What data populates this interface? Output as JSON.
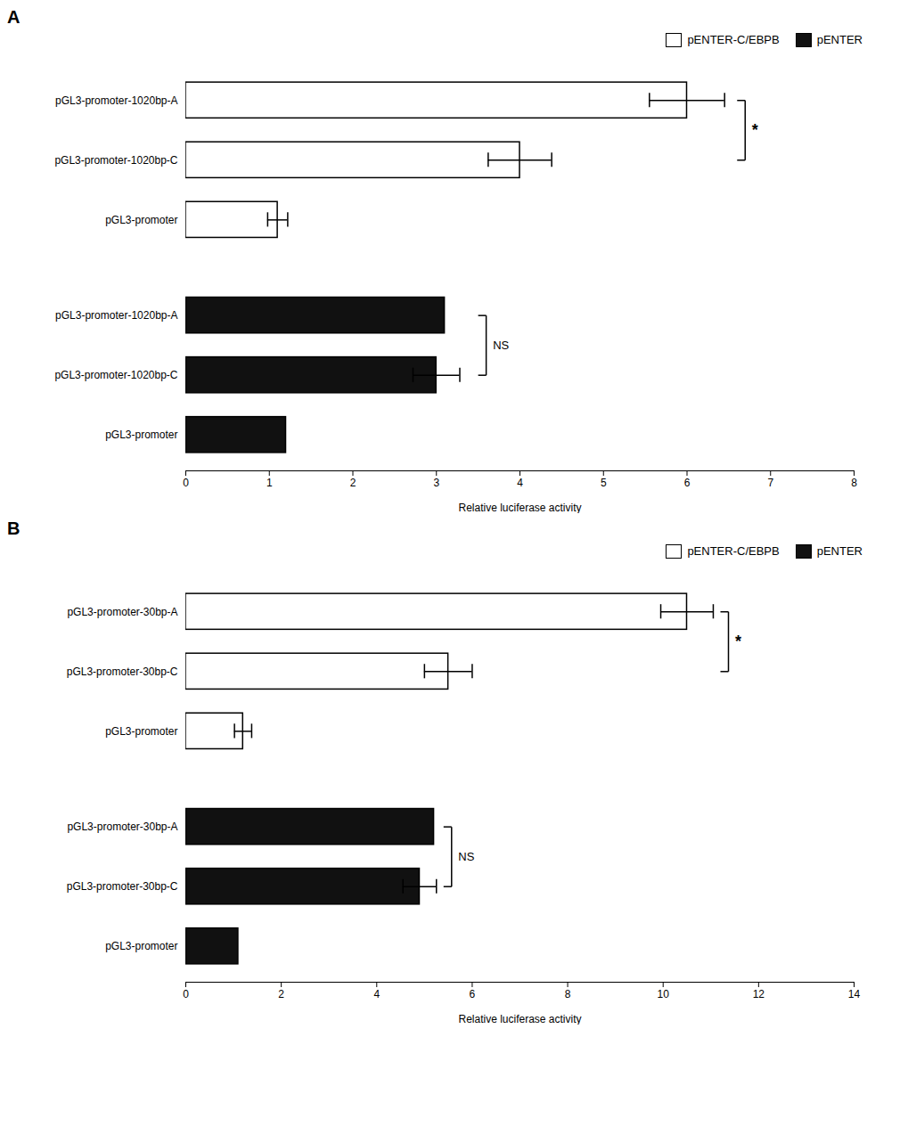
{
  "chart_data": [
    {
      "type": "bar",
      "title": "A",
      "orientation": "horizontal",
      "xlabel": "Relative luciferase activity",
      "xlim": [
        0,
        8
      ],
      "xticks": [
        0,
        1,
        2,
        3,
        4,
        5,
        6,
        7,
        8
      ],
      "grid": false,
      "legend": "upper right",
      "categories": [
        "pGL3-promoter-1020bp-A",
        "pGL3-promoter-1020bp-C",
        "pGL3-promoter"
      ],
      "series": [
        {
          "name": "pENTER-C/EBPB",
          "color": "#ffffff",
          "values": [
            6.0,
            4.0,
            1.1
          ],
          "errors": [
            0.45,
            0.38,
            0.12
          ]
        },
        {
          "name": "pENTER",
          "color": "#111111",
          "values": [
            3.1,
            3.0,
            1.2
          ],
          "errors": [
            0.0,
            0.28,
            0.0
          ]
        }
      ],
      "annotations": [
        {
          "text": "*",
          "x": 6.6,
          "series": "pENTER-C/EBPB",
          "categories": [
            "pGL3-promoter-1020bp-A",
            "pGL3-promoter-1020bp-C"
          ]
        },
        {
          "text": "NS",
          "x": 3.5,
          "series": "pENTER",
          "categories": [
            "pGL3-promoter-1020bp-A",
            "pGL3-promoter-1020bp-C"
          ]
        }
      ]
    },
    {
      "type": "bar",
      "title": "B",
      "orientation": "horizontal",
      "xlabel": "Relative luciferase activity",
      "xlim": [
        0,
        14
      ],
      "xticks": [
        0,
        2,
        4,
        6,
        8,
        10,
        12,
        14
      ],
      "grid": false,
      "legend": "upper right",
      "categories": [
        "pGL3-promoter-30bp-A",
        "pGL3-promoter-30bp-C",
        "pGL3-promoter"
      ],
      "series": [
        {
          "name": "pENTER-C/EBPB",
          "color": "#ffffff",
          "values": [
            10.5,
            5.5,
            1.2
          ],
          "errors": [
            0.55,
            0.5,
            0.18
          ]
        },
        {
          "name": "pENTER",
          "color": "#111111",
          "values": [
            5.2,
            4.9,
            1.1
          ],
          "errors": [
            0.0,
            0.35,
            0.0
          ]
        }
      ],
      "annotations": [
        {
          "text": "*",
          "x": 11.2,
          "series": "pENTER-C/EBPB",
          "categories": [
            "pGL3-promoter-30bp-A",
            "pGL3-promoter-30bp-C"
          ]
        },
        {
          "text": "NS",
          "x": 5.4,
          "series": "pENTER",
          "categories": [
            "pGL3-promoter-30bp-A",
            "pGL3-promoter-30bp-C"
          ]
        }
      ]
    }
  ]
}
